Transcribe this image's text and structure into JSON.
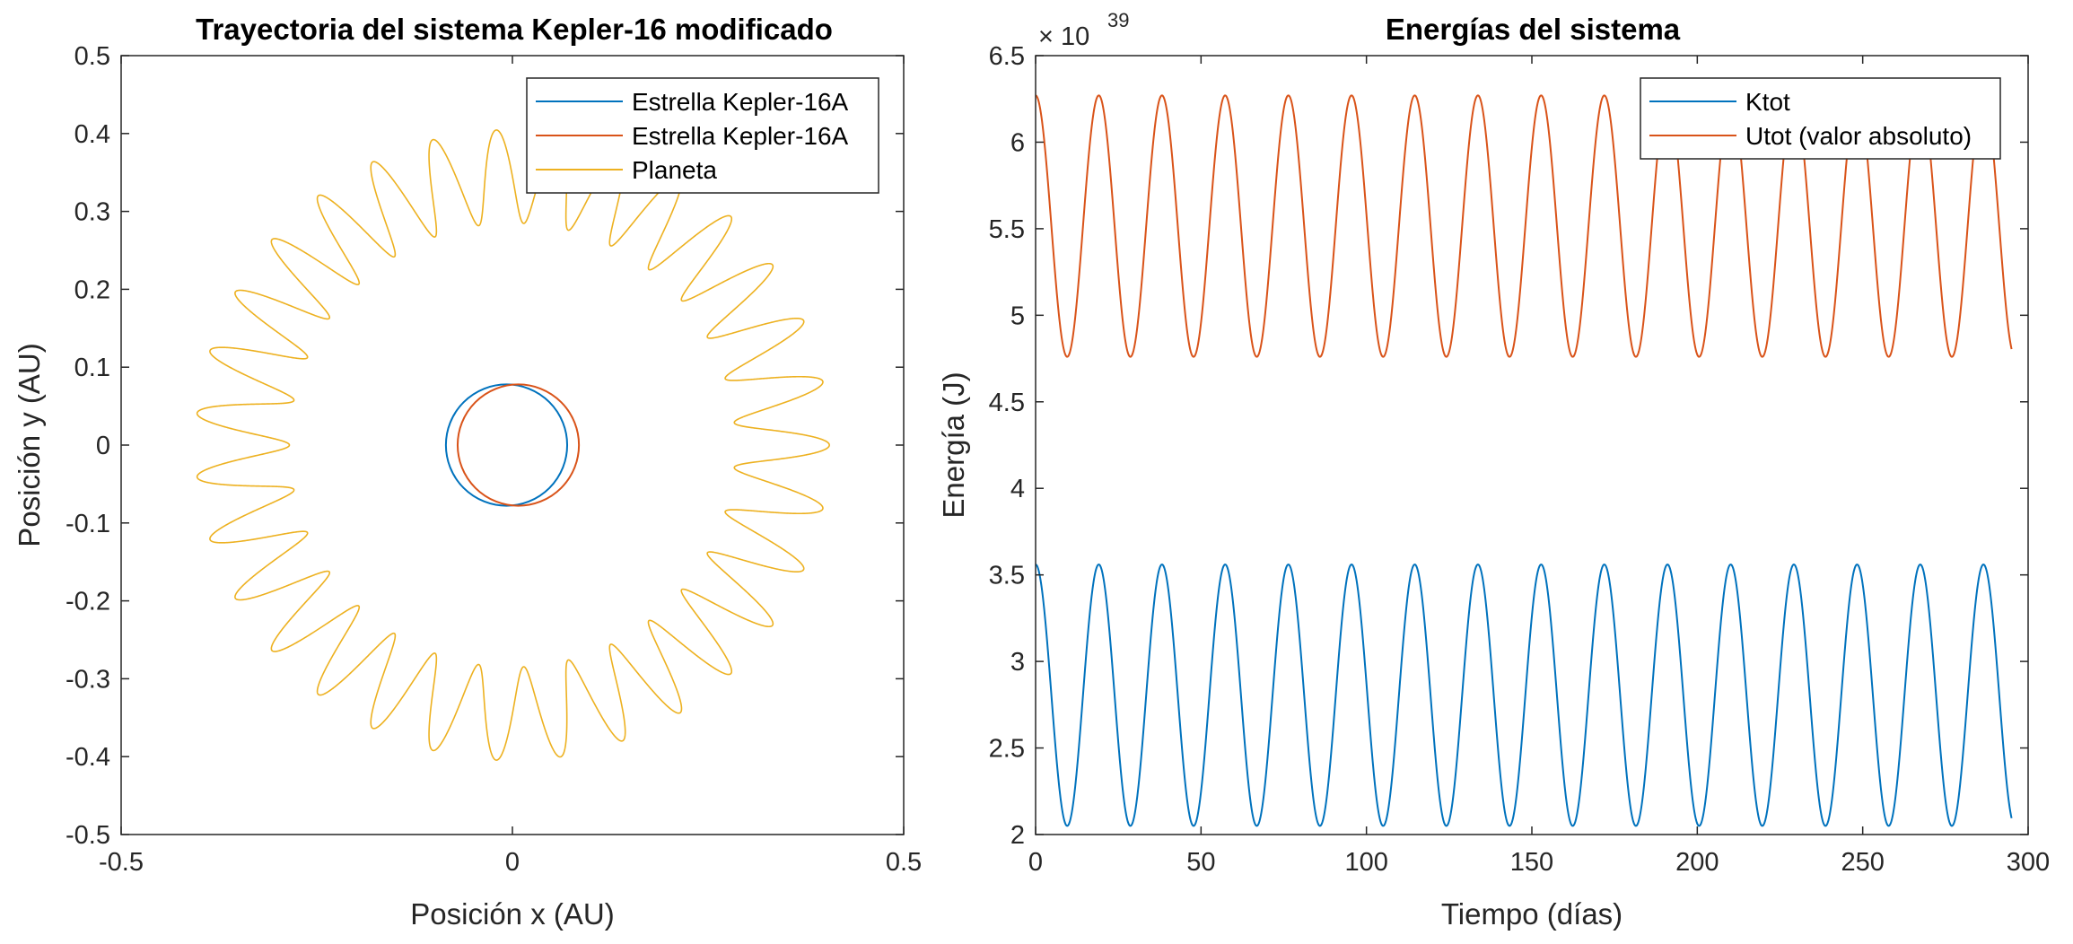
{
  "chart_data": [
    {
      "type": "line",
      "title": "Trayectoria del sistema Kepler-16 modificado",
      "xlabel": "Posición x (AU)",
      "ylabel": "Posición y (AU)",
      "xlim": [
        -0.5,
        0.5
      ],
      "ylim": [
        -0.5,
        0.5
      ],
      "xticks": [
        -0.5,
        0,
        0.5
      ],
      "xtick_labels": [
        "-0.5",
        "0",
        "0.5"
      ],
      "yticks": [
        0.5,
        0.4,
        0.3,
        0.2,
        0.1,
        0,
        -0.1,
        -0.2,
        -0.3,
        -0.4,
        -0.5
      ],
      "ytick_labels": [
        "0.5",
        "0.4",
        "0.3",
        "0.2",
        "0.1",
        "0",
        "-0.1",
        "-0.2",
        "-0.3",
        "-0.4",
        "-0.5"
      ],
      "grid": false,
      "legend_position": "top-right",
      "series": [
        {
          "name": "Estrella Kepler-16A",
          "color": "#0072BD",
          "center": [
            -0.0075,
            0.0
          ],
          "radius": 0.0775
        },
        {
          "name": "Estrella Kepler-16A",
          "color": "#D95319",
          "center": [
            0.0075,
            0.0
          ],
          "radius": 0.0775
        },
        {
          "name": "Planeta",
          "color": "#EDB120",
          "radius_min": 0.285,
          "radius_max": 0.405,
          "loops": 31
        }
      ]
    },
    {
      "type": "line",
      "title": "Energías del sistema",
      "xlabel": "Tiempo (días)",
      "ylabel": "Energía (J)",
      "exponent": "× 10",
      "exponent_power": "39",
      "xlim": [
        0,
        300
      ],
      "ylim": [
        2,
        6.5
      ],
      "xticks": [
        0,
        50,
        100,
        150,
        200,
        250,
        300
      ],
      "xtick_labels": [
        "0",
        "50",
        "100",
        "150",
        "200",
        "250",
        "300"
      ],
      "yticks": [
        6.5,
        6,
        5.5,
        5,
        4.5,
        4,
        3.5,
        3,
        2.5,
        2
      ],
      "ytick_labels": [
        "6.5",
        "6",
        "5.5",
        "5",
        "4.5",
        "4",
        "3.5",
        "3",
        "2.5",
        "2"
      ],
      "grid": false,
      "legend_position": "top-right",
      "series": [
        {
          "name": "Ktot",
          "color": "#0072BD",
          "min": 2.05,
          "max": 3.56,
          "period": 19.1,
          "phase_start": "max",
          "t_end": 295
        },
        {
          "name": "Utot (valor absoluto)",
          "color": "#D95319",
          "min": 4.76,
          "max": 6.27,
          "period": 19.1,
          "phase_start": "max",
          "t_end": 295
        }
      ]
    }
  ]
}
